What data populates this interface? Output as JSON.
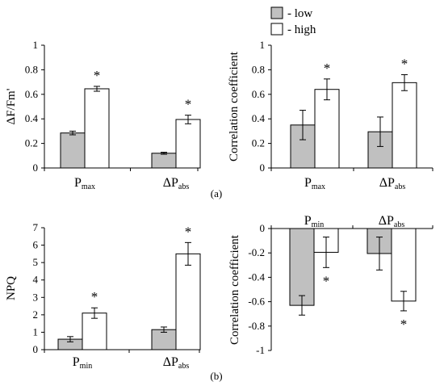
{
  "legend": {
    "low": "- low",
    "high": "- high"
  },
  "colors": {
    "low": "#c0c0c0",
    "high": "#ffffff",
    "stroke": "#000000"
  },
  "panel_labels": [
    "(a)",
    "(b)"
  ],
  "chart_data": [
    {
      "id": "a-left",
      "type": "bar",
      "title": "",
      "xlabel": "",
      "ylabel": "ΔF/Fm'",
      "ylim": [
        0,
        1
      ],
      "yticks": [
        0,
        0.2,
        0.4,
        0.6,
        0.8,
        1
      ],
      "ytick_labels": [
        "0",
        "0.2",
        "0.4",
        "0.6",
        "0.8",
        "1"
      ],
      "categories": [
        {
          "main": "P",
          "sub": "max"
        },
        {
          "main": "ΔP",
          "sub": "abs"
        }
      ],
      "series": [
        {
          "name": "low",
          "values": [
            0.285,
            0.12
          ],
          "errors": [
            0.015,
            0.008
          ]
        },
        {
          "name": "high",
          "values": [
            0.645,
            0.395
          ],
          "errors": [
            0.02,
            0.035
          ]
        }
      ],
      "star": "*",
      "stars_above": [
        1,
        1
      ]
    },
    {
      "id": "a-right",
      "type": "bar",
      "title": "",
      "xlabel": "",
      "ylabel": "Correlation coefficient",
      "ylim": [
        0,
        1
      ],
      "yticks": [
        0,
        0.2,
        0.4,
        0.6,
        0.8,
        1
      ],
      "ytick_labels": [
        "0",
        "0.2",
        "0.4",
        "0.6",
        "0.8",
        "1"
      ],
      "categories": [
        {
          "main": "P",
          "sub": "max"
        },
        {
          "main": "ΔP",
          "sub": "abs"
        }
      ],
      "series": [
        {
          "name": "low",
          "values": [
            0.35,
            0.295
          ],
          "errors": [
            0.12,
            0.12
          ]
        },
        {
          "name": "high",
          "values": [
            0.64,
            0.695
          ],
          "errors": [
            0.085,
            0.065
          ]
        }
      ],
      "star": "*",
      "stars_above": [
        1,
        1
      ]
    },
    {
      "id": "b-left",
      "type": "bar",
      "title": "",
      "xlabel": "",
      "ylabel": "NPQ",
      "ylim": [
        0,
        7
      ],
      "yticks": [
        0,
        1,
        2,
        3,
        4,
        5,
        6,
        7
      ],
      "ytick_labels": [
        "0",
        "1",
        "2",
        "3",
        "4",
        "5",
        "6",
        "7"
      ],
      "categories": [
        {
          "main": "P",
          "sub": "min"
        },
        {
          "main": "ΔP",
          "sub": "abs"
        }
      ],
      "series": [
        {
          "name": "low",
          "values": [
            0.6,
            1.15
          ],
          "errors": [
            0.15,
            0.15
          ]
        },
        {
          "name": "high",
          "values": [
            2.1,
            5.5
          ],
          "errors": [
            0.3,
            0.65
          ]
        }
      ],
      "star": "*",
      "stars_above": [
        1,
        1
      ]
    },
    {
      "id": "b-right",
      "type": "bar",
      "title": "",
      "xlabel": "",
      "ylabel": "Correlation coefficient",
      "ylim": [
        -1,
        0
      ],
      "yticks": [
        0,
        -0.2,
        -0.4,
        -0.6,
        -0.8,
        -1
      ],
      "ytick_labels": [
        "0",
        "-0.2",
        "-0.4",
        "-0.6",
        "-0.8",
        "-1"
      ],
      "categories": [
        {
          "main": "P",
          "sub": "min"
        },
        {
          "main": "ΔP",
          "sub": "abs"
        }
      ],
      "series": [
        {
          "name": "low",
          "values": [
            -0.63,
            -0.205
          ],
          "errors": [
            0.08,
            0.135
          ]
        },
        {
          "name": "high",
          "values": [
            -0.195,
            -0.595
          ],
          "errors": [
            0.125,
            0.08
          ]
        }
      ],
      "star": "*",
      "stars_above": [
        1,
        1
      ]
    }
  ]
}
